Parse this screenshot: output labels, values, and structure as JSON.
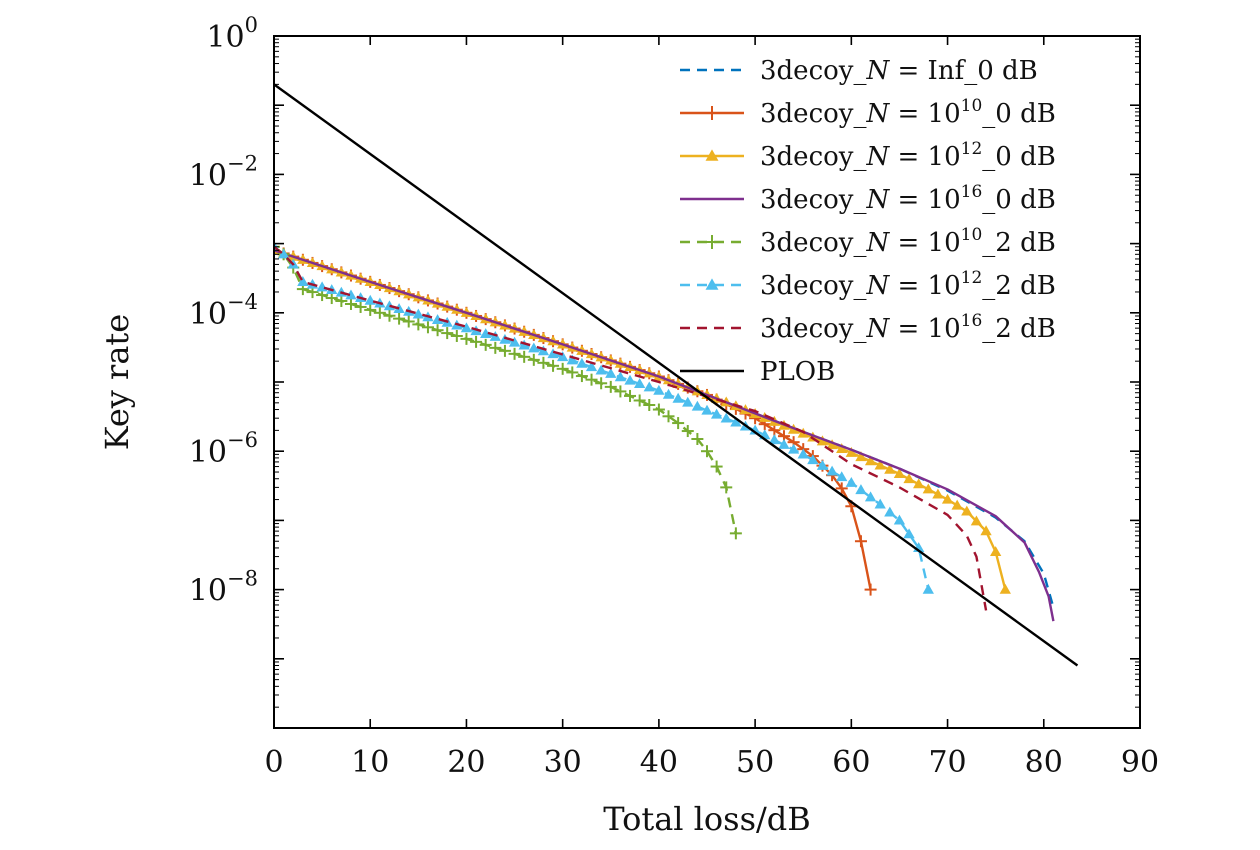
{
  "chart_data": {
    "type": "line",
    "xlabel": "Total loss/dB",
    "ylabel": "Key rate",
    "xlim": [
      0,
      90
    ],
    "ylim_log10": [
      -10,
      0
    ],
    "y_scale": "log",
    "x_ticks": [
      0,
      10,
      20,
      30,
      40,
      50,
      60,
      70,
      80,
      90
    ],
    "y_ticks": [
      {
        "base": "10",
        "exp": "0",
        "log10": 0
      },
      {
        "base": "10",
        "exp": "−2",
        "log10": -2
      },
      {
        "base": "10",
        "exp": "−4",
        "log10": -4
      },
      {
        "base": "10",
        "exp": "−6",
        "log10": -6
      },
      {
        "base": "10",
        "exp": "−8",
        "log10": -8
      }
    ],
    "legend_position": "top-right",
    "grid": false,
    "series": [
      {
        "name": "3decoy_N = Inf_0 dB",
        "legend": {
          "prefix": "3decoy_",
          "var": "N",
          "mid": " = Inf",
          "sup": "",
          "suffix": "_0 dB"
        },
        "color": "#0072BD",
        "dash": "dashed",
        "marker": "none",
        "x": [
          0,
          10,
          20,
          30,
          40,
          48,
          55,
          60,
          65,
          70,
          75,
          78,
          80,
          81
        ],
        "y": [
          0.0008,
          0.00028,
          0.0001,
          3.5e-05,
          1.2e-05,
          4.5e-06,
          1.9e-06,
          1.05e-06,
          5.6e-07,
          2.7e-07,
          1.1e-07,
          5e-08,
          1.7e-08,
          5.5e-09
        ]
      },
      {
        "name": "3decoy_N = 10^10_0 dB",
        "legend": {
          "prefix": "3decoy_",
          "var": "N",
          "mid": " = 10",
          "sup": "10",
          "suffix": "_0 dB"
        },
        "color": "#D95319",
        "dash": "solid",
        "marker": "plus",
        "x": [
          0,
          10,
          20,
          30,
          40,
          45,
          50,
          54,
          56,
          58,
          59,
          60,
          61,
          62
        ],
        "y": [
          0.0008,
          0.00028,
          0.0001,
          3.5e-05,
          1.2e-05,
          6.5e-06,
          3e-06,
          1.35e-06,
          8.5e-07,
          4.5e-07,
          2.9e-07,
          1.6e-07,
          5e-08,
          1e-08
        ]
      },
      {
        "name": "3decoy_N = 10^12_0 dB",
        "legend": {
          "prefix": "3decoy_",
          "var": "N",
          "mid": " = 10",
          "sup": "12",
          "suffix": "_0 dB"
        },
        "color": "#EDB120",
        "dash": "solid",
        "marker": "triangle",
        "x": [
          0,
          10,
          20,
          30,
          40,
          48,
          55,
          60,
          65,
          70,
          72,
          74,
          75,
          76
        ],
        "y": [
          0.0008,
          0.00028,
          0.0001,
          3.5e-05,
          1.2e-05,
          4.5e-06,
          1.8e-06,
          9.5e-07,
          4.7e-07,
          2e-07,
          1.35e-07,
          7e-08,
          3.5e-08,
          1e-08
        ]
      },
      {
        "name": "3decoy_N = 10^16_0 dB",
        "legend": {
          "prefix": "3decoy_",
          "var": "N",
          "mid": " = 10",
          "sup": "16",
          "suffix": "_0 dB"
        },
        "color": "#7E2F8E",
        "dash": "solid",
        "marker": "none",
        "x": [
          0,
          10,
          20,
          30,
          40,
          48,
          55,
          60,
          65,
          70,
          75,
          78,
          79.5,
          80.5,
          81
        ],
        "y": [
          0.0008,
          0.00028,
          0.0001,
          3.5e-05,
          1.2e-05,
          4.5e-06,
          1.9e-06,
          1.05e-06,
          5.6e-07,
          2.8e-07,
          1.15e-07,
          4.8e-08,
          1.8e-08,
          8e-09,
          3.5e-09
        ]
      },
      {
        "name": "3decoy_N = 10^10_2 dB",
        "legend": {
          "prefix": "3decoy_",
          "var": "N",
          "mid": " = 10",
          "sup": "10",
          "suffix": "_2 dB"
        },
        "color": "#77AC30",
        "dash": "dashed",
        "marker": "plus",
        "x": [
          0,
          1,
          2,
          3,
          10,
          20,
          30,
          35,
          40,
          42,
          44,
          45,
          46,
          47,
          48
        ],
        "y": [
          0.0009,
          0.0007,
          0.00045,
          0.00022,
          0.00011,
          4.2e-05,
          1.55e-05,
          8.5e-06,
          4e-06,
          2.55e-06,
          1.5e-06,
          1e-06,
          6e-07,
          3e-07,
          6.5e-08
        ]
      },
      {
        "name": "3decoy_N = 10^12_2 dB",
        "legend": {
          "prefix": "3decoy_",
          "var": "N",
          "mid": " = 10",
          "sup": "12",
          "suffix": "_2 dB"
        },
        "color": "#4DBEEE",
        "dash": "dashed",
        "marker": "triangle",
        "x": [
          0,
          1,
          2,
          3,
          10,
          20,
          30,
          40,
          50,
          55,
          60,
          63,
          65,
          67,
          68
        ],
        "y": [
          0.0009,
          0.0007,
          0.0005,
          0.00028,
          0.00015,
          6e-05,
          2.3e-05,
          7.5e-06,
          2e-06,
          9e-07,
          3.5e-07,
          1.7e-07,
          1e-07,
          4e-08,
          1e-08
        ]
      },
      {
        "name": "3decoy_N = 10^16_2 dB",
        "legend": {
          "prefix": "3decoy_",
          "var": "N",
          "mid": " = 10",
          "sup": "16",
          "suffix": "_2 dB"
        },
        "color": "#A2142F",
        "dash": "dashed",
        "marker": "none",
        "x": [
          0,
          1,
          2,
          3,
          10,
          20,
          30,
          40,
          50,
          55,
          60,
          65,
          70,
          72,
          73,
          74
        ],
        "y": [
          0.0009,
          0.0007,
          0.0005,
          0.00028,
          0.00015,
          6.3e-05,
          2.5e-05,
          1e-05,
          3.8e-06,
          1.9e-06,
          6.5e-07,
          3e-07,
          1.2e-07,
          6e-08,
          3e-08,
          5e-09
        ]
      },
      {
        "name": "PLOB",
        "legend": {
          "prefix": "PLOB",
          "var": "",
          "mid": "",
          "sup": "",
          "suffix": ""
        },
        "color": "#000000",
        "dash": "solid",
        "marker": "none",
        "x": [
          0,
          83.5
        ],
        "y": [
          0.2,
          8e-10
        ]
      }
    ]
  }
}
